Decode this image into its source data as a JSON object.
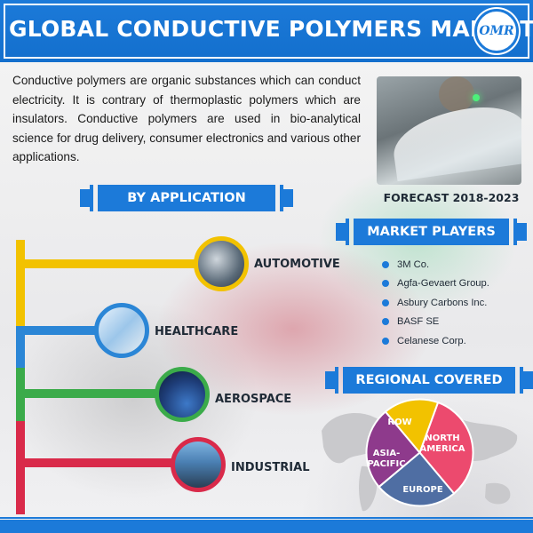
{
  "header": {
    "title": "GLOBAL CONDUCTIVE POLYMERS MARKET",
    "logo_text": "OMR"
  },
  "intro": {
    "text": "Conductive polymers are organic substances which can conduct electricity. It is contrary of thermoplastic polymers which are insulators. Conductive polymers are used in bio-analytical science for drug delivery, consumer electronics and various other applications."
  },
  "forecast": {
    "label": "FORECAST 2018-2023"
  },
  "by_application": {
    "heading": "BY APPLICATION",
    "items": [
      {
        "label": "AUTOMOTIVE",
        "color": "#f2c200",
        "icon": "car-assembly-icon"
      },
      {
        "label": "HEALTHCARE",
        "color": "#2b86d6",
        "icon": "syringe-vials-icon"
      },
      {
        "label": "AEROSPACE",
        "color": "#3bab4a",
        "icon": "satellite-earth-icon"
      },
      {
        "label": "INDUSTRIAL",
        "color": "#d92a4a",
        "icon": "factory-icon"
      }
    ]
  },
  "market_players": {
    "heading": "MARKET PLAYERS",
    "items": [
      "3M Co.",
      "Agfa-Gevaert Group.",
      "Asbury Carbons Inc.",
      "BASF SE",
      "Celanese Corp."
    ]
  },
  "regional": {
    "heading": "REGIONAL COVERED",
    "segments": [
      {
        "label": "NORTH AMERICA",
        "line1": "NORTH",
        "line2": "AMERICA",
        "color": "#ec4a6e"
      },
      {
        "label": "EUROPE",
        "line1": "EUROPE",
        "line2": "",
        "color": "#4f6ea3"
      },
      {
        "label": "ASIA-PACIFIC",
        "line1": "ASIA-",
        "line2": "PACIFIC",
        "color": "#8e3a8c"
      },
      {
        "label": "ROW",
        "line1": "ROW",
        "line2": "",
        "color": "#f2c200"
      }
    ]
  },
  "colors": {
    "brand_blue": "#1c7ad9",
    "yellow": "#f2c200",
    "blue": "#2b86d6",
    "green": "#3bab4a",
    "red": "#d92a4a"
  }
}
